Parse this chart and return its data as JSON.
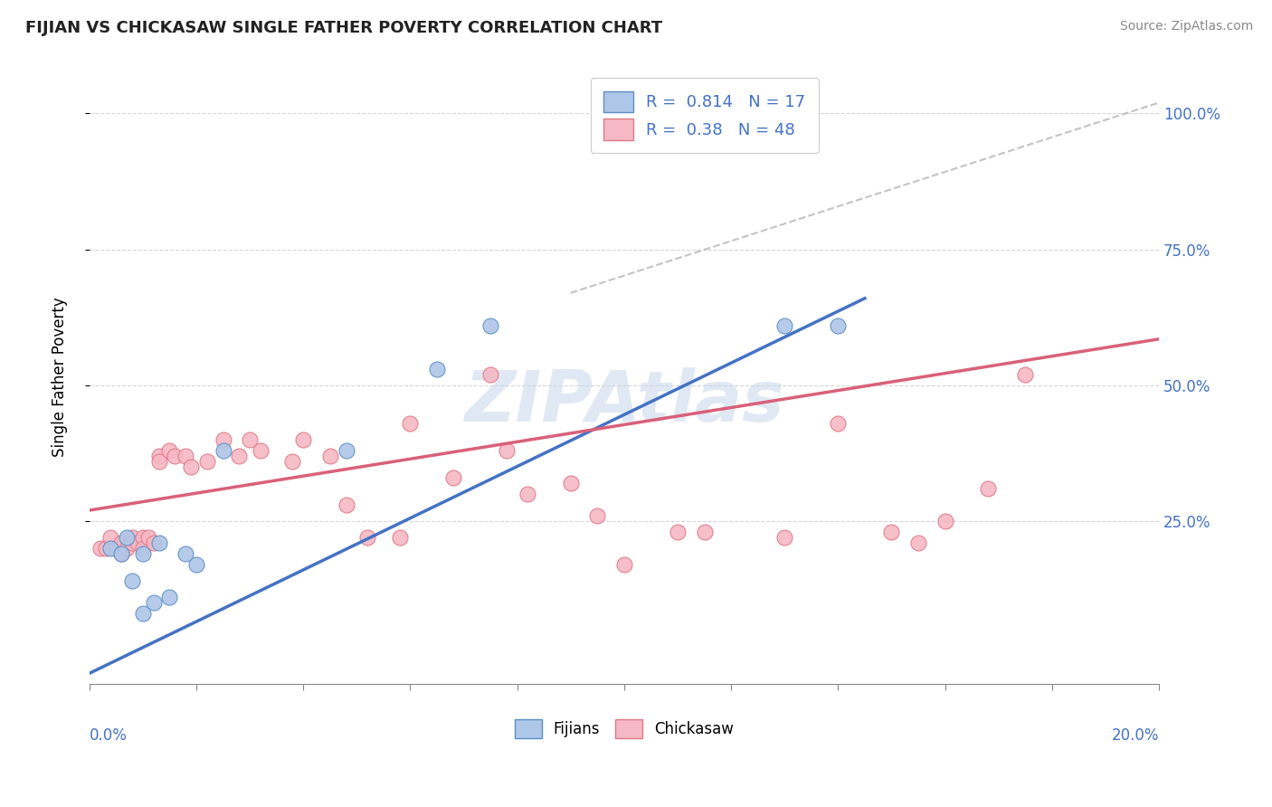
{
  "title": "FIJIAN VS CHICKASAW SINGLE FATHER POVERTY CORRELATION CHART",
  "source": "Source: ZipAtlas.com",
  "ylabel": "Single Father Poverty",
  "ytick_labels": [
    "25.0%",
    "50.0%",
    "75.0%",
    "100.0%"
  ],
  "ytick_values": [
    0.25,
    0.5,
    0.75,
    1.0
  ],
  "xlim": [
    0.0,
    0.2
  ],
  "ylim": [
    -0.05,
    1.08
  ],
  "fijian_R": 0.814,
  "fijian_N": 17,
  "chickasaw_R": 0.38,
  "chickasaw_N": 48,
  "fijian_color": "#aec6e8",
  "chickasaw_color": "#f5b8c4",
  "fijian_edge_color": "#5b8ec4",
  "chickasaw_edge_color": "#e07888",
  "fijian_line_color": "#4472c4",
  "chickasaw_line_color": "#d9607a",
  "dash_line_color": "#aaaaaa",
  "watermark_color": "#c8d8ea",
  "fijian_scatter_x": [
    0.004,
    0.006,
    0.007,
    0.008,
    0.01,
    0.01,
    0.012,
    0.013,
    0.015,
    0.018,
    0.02,
    0.025,
    0.048,
    0.065,
    0.075,
    0.13,
    0.14
  ],
  "fijian_scatter_y": [
    0.2,
    0.19,
    0.22,
    0.14,
    0.19,
    0.08,
    0.1,
    0.21,
    0.11,
    0.19,
    0.17,
    0.38,
    0.38,
    0.53,
    0.61,
    0.61,
    0.61
  ],
  "chickasaw_scatter_x": [
    0.002,
    0.003,
    0.004,
    0.005,
    0.006,
    0.006,
    0.007,
    0.008,
    0.008,
    0.009,
    0.01,
    0.01,
    0.011,
    0.012,
    0.013,
    0.013,
    0.015,
    0.016,
    0.018,
    0.019,
    0.022,
    0.025,
    0.028,
    0.03,
    0.032,
    0.038,
    0.04,
    0.045,
    0.048,
    0.052,
    0.058,
    0.06,
    0.068,
    0.075,
    0.078,
    0.082,
    0.09,
    0.095,
    0.1,
    0.11,
    0.115,
    0.13,
    0.14,
    0.15,
    0.155,
    0.16,
    0.168,
    0.175
  ],
  "chickasaw_scatter_y": [
    0.2,
    0.2,
    0.22,
    0.2,
    0.19,
    0.21,
    0.2,
    0.22,
    0.21,
    0.21,
    0.22,
    0.2,
    0.22,
    0.21,
    0.37,
    0.36,
    0.38,
    0.37,
    0.37,
    0.35,
    0.36,
    0.4,
    0.37,
    0.4,
    0.38,
    0.36,
    0.4,
    0.37,
    0.28,
    0.22,
    0.22,
    0.43,
    0.33,
    0.52,
    0.38,
    0.3,
    0.32,
    0.26,
    0.17,
    0.23,
    0.23,
    0.22,
    0.43,
    0.23,
    0.21,
    0.25,
    0.31,
    0.52
  ],
  "fijian_line_x": [
    0.0,
    0.145
  ],
  "fijian_line_y": [
    -0.03,
    0.66
  ],
  "chickasaw_line_x": [
    0.0,
    0.2
  ],
  "chickasaw_line_y": [
    0.27,
    0.585
  ],
  "dash_line_x": [
    0.09,
    0.2
  ],
  "dash_line_y": [
    0.67,
    1.02
  ]
}
